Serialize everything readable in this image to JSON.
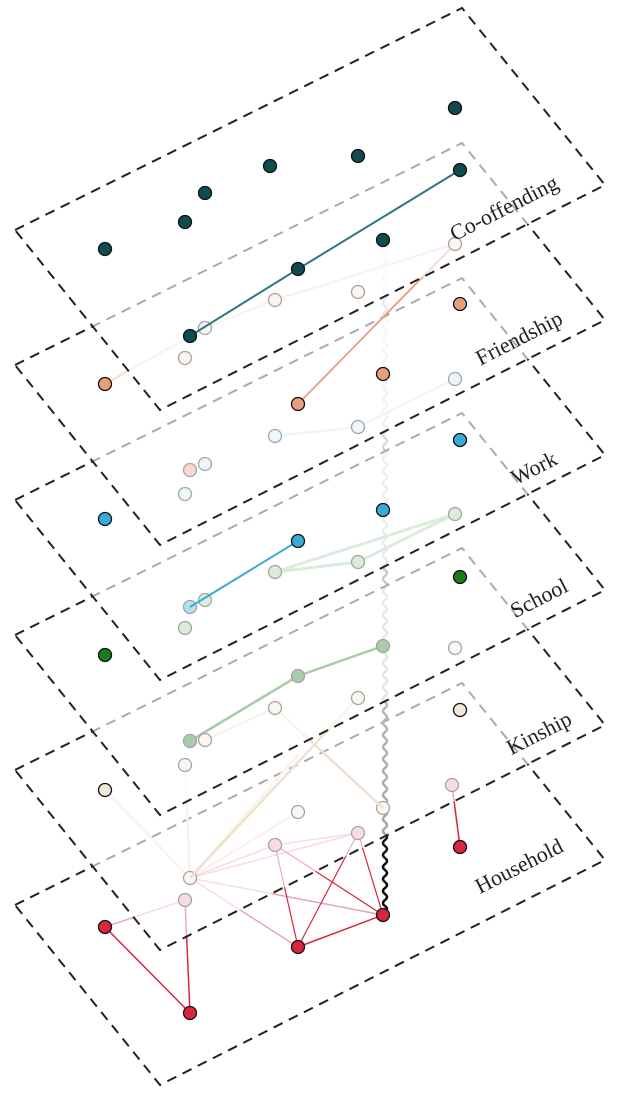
{
  "layers": [
    "Co-offending",
    "Friendship",
    "Work",
    "School",
    "Kinship",
    "Household"
  ]
}
